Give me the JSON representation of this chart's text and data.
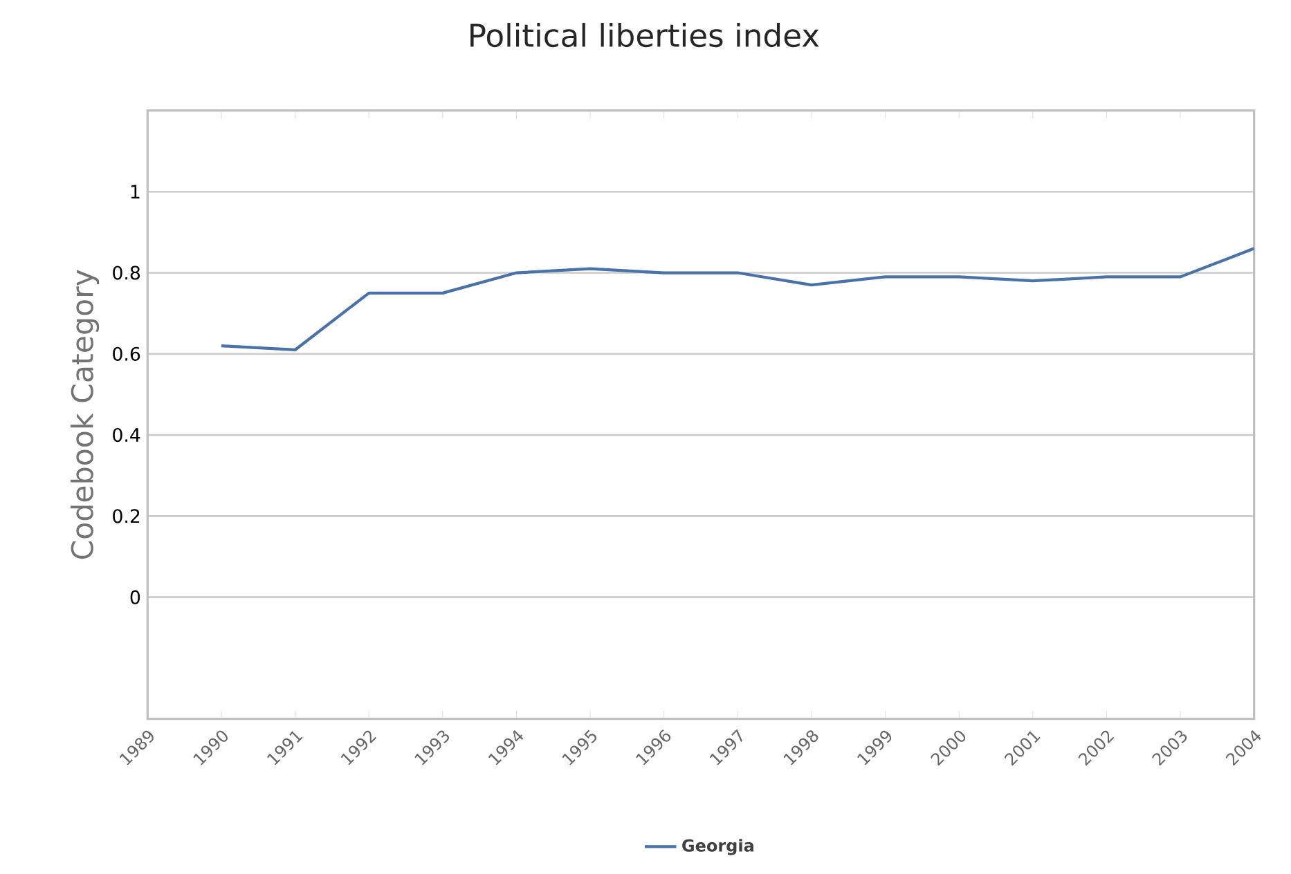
{
  "chart_data": {
    "type": "line",
    "title": "Political liberties index",
    "ylabel": "Codebook Category",
    "x": [
      1990,
      1991,
      1992,
      1993,
      1994,
      1995,
      1996,
      1997,
      1998,
      1999,
      2000,
      2001,
      2002,
      2003,
      2004
    ],
    "series": [
      {
        "name": "Georgia",
        "color": "#4a72a8",
        "values": [
          0.62,
          0.61,
          0.75,
          0.75,
          0.8,
          0.81,
          0.8,
          0.8,
          0.77,
          0.79,
          0.79,
          0.78,
          0.79,
          0.79,
          0.86
        ]
      }
    ],
    "xlim": [
      1989,
      2004
    ],
    "xticks": [
      1989,
      1990,
      1991,
      1992,
      1993,
      1994,
      1995,
      1996,
      1997,
      1998,
      1999,
      2000,
      2001,
      2002,
      2003,
      2004
    ],
    "ylim": [
      -0.3,
      1.2
    ],
    "yticks": [
      0,
      0.2,
      0.4,
      0.6,
      0.8,
      1
    ],
    "grid": "y",
    "legend": "bottom",
    "marker": "none",
    "line_style": "solid"
  }
}
